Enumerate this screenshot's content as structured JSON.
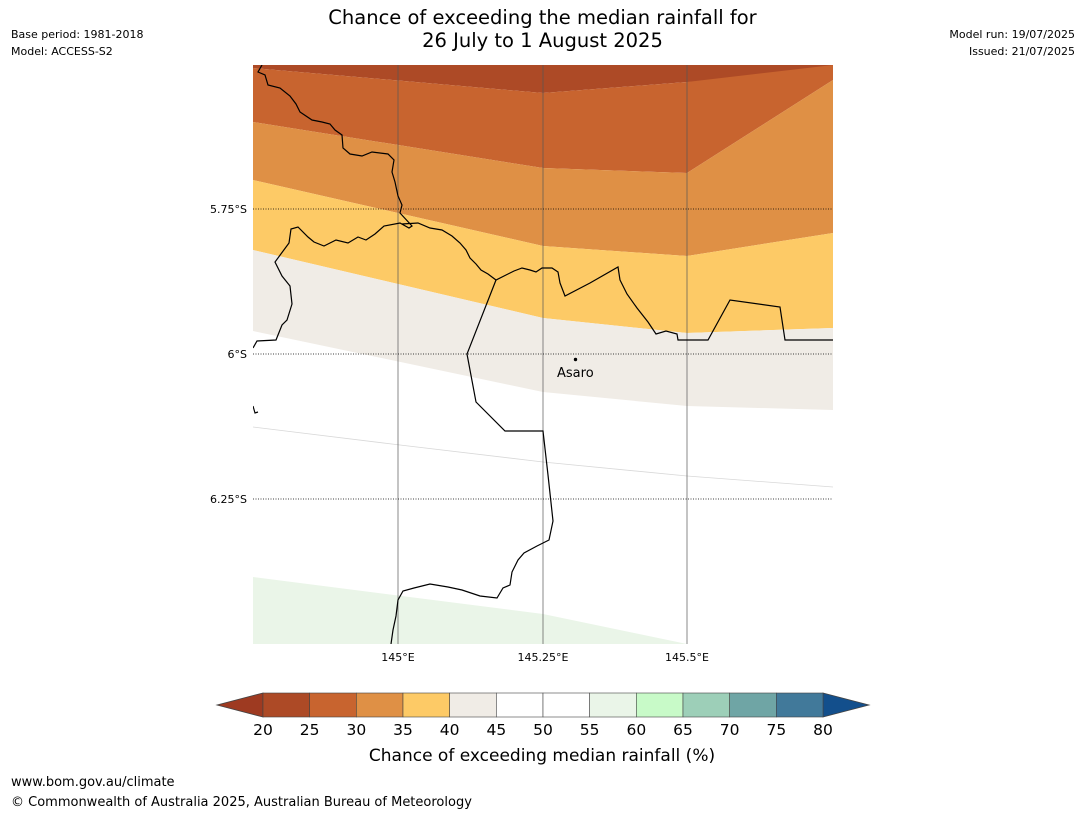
{
  "title": {
    "line1": "Chance of exceeding the median rainfall for",
    "line2": "26 July to 1 August 2025"
  },
  "meta_left": {
    "base_period": "Base period: 1981-2018",
    "model": "Model: ACCESS-S2"
  },
  "meta_right": {
    "model_run": "Model run: 19/07/2025",
    "issued": "Issued: 21/07/2025"
  },
  "map": {
    "lat_labels": [
      "5.75°S",
      "6°S",
      "6.25°S"
    ],
    "lon_labels": [
      "145°E",
      "145.25°E",
      "145.5°E"
    ],
    "place": {
      "name": "Asaro"
    }
  },
  "colorbar": {
    "label": "Chance of exceeding median rainfall (%)",
    "ticks": [
      "20",
      "25",
      "30",
      "35",
      "40",
      "45",
      "50",
      "55",
      "60",
      "65",
      "70",
      "75",
      "80"
    ],
    "under_color": "#9e3a21",
    "over_color": "#134f8c",
    "colors": [
      "#ad4a26",
      "#c8642f",
      "#df9045",
      "#fdca66",
      "#f0ece6",
      "#ffffff",
      "#ffffff",
      "#eaf5e8",
      "#c8fac8",
      "#9dcfb8",
      "#6fa5a5",
      "#41799a"
    ]
  },
  "footer": {
    "url": "www.bom.gov.au/climate",
    "copyright": "© Commonwealth of Australia 2025, Australian Bureau of Meteorology"
  }
}
